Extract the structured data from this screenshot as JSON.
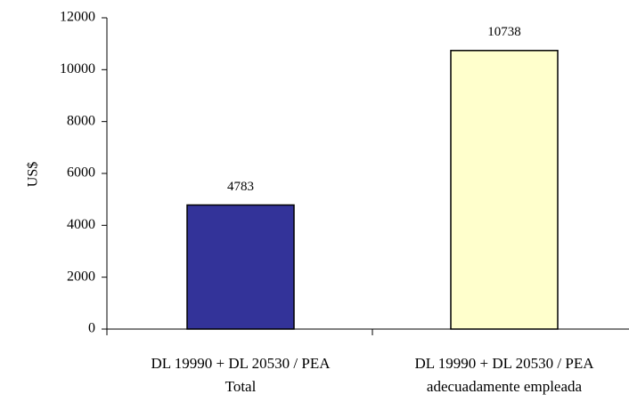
{
  "chart_data": {
    "type": "bar",
    "y_label": "US$",
    "categories": [
      [
        "DL 19990 + DL 20530 / PEA",
        "Total"
      ],
      [
        "DL 19990 + DL 20530 / PEA",
        "adecuadamente empleada"
      ]
    ],
    "values": [
      4783,
      10738
    ],
    "colors": [
      "#333399",
      "#ffffcc"
    ],
    "ylim": [
      0,
      12000
    ],
    "yticks": [
      0,
      2000,
      4000,
      6000,
      8000,
      10000,
      12000
    ],
    "grid": false
  }
}
